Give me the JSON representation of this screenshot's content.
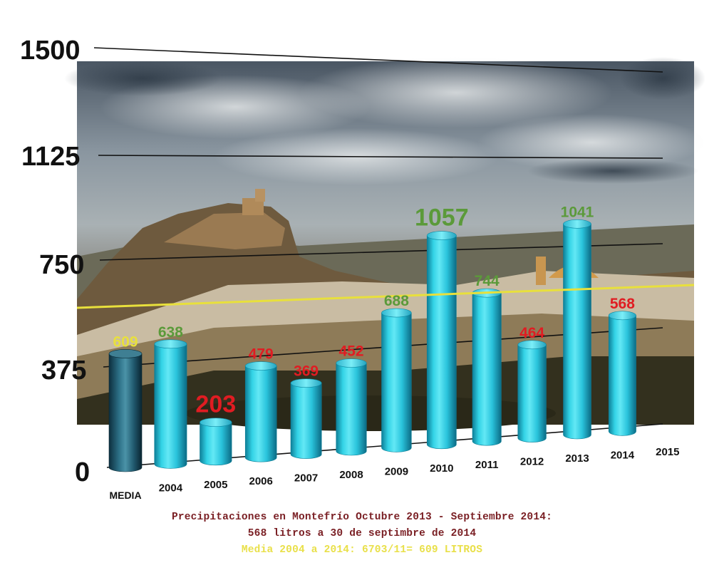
{
  "colors": {
    "above_average": "#5b9a3a",
    "below_average": "#e01c22",
    "average_bar_label": "#e8e03c",
    "average_line": "#e8e03c",
    "bar_fill": "#2ec8dc",
    "caption_main": "#7a1f24",
    "caption_average": "#e9e04a"
  },
  "chart_data": {
    "type": "bar",
    "title": "",
    "xlabel": "",
    "ylabel": "",
    "ylim": [
      0,
      1500
    ],
    "y_ticks": [
      "0",
      "375",
      "750",
      "1125",
      "1500"
    ],
    "categories": [
      "MEDIA",
      "2004",
      "2005",
      "2006",
      "2007",
      "2008",
      "2009",
      "2010",
      "2011",
      "2012",
      "2013",
      "2014",
      "2015"
    ],
    "values": [
      609,
      638,
      203,
      479,
      369,
      452,
      688,
      1057,
      744,
      464,
      1041,
      568,
      null
    ],
    "value_labels": [
      "609",
      "638",
      "203",
      "479",
      "369",
      "452",
      "688",
      "1057",
      "744",
      "464",
      "1041",
      "568",
      ""
    ],
    "label_color_key": [
      "average",
      "above",
      "below",
      "below",
      "below",
      "below",
      "above",
      "above",
      "above",
      "below",
      "above",
      "below",
      "none"
    ],
    "average_line": 609,
    "background": "photograph of Montefrío with cloudy sky",
    "grid": true
  },
  "caption": {
    "line1": "Precipitaciones en Montefrío Octubre 2013 - Septiembre 2014:",
    "line2": "568 litros a 30 de septimbre de 2014",
    "line3": "Media 2004 a 2014: 6703/11= 609 LITROS"
  }
}
